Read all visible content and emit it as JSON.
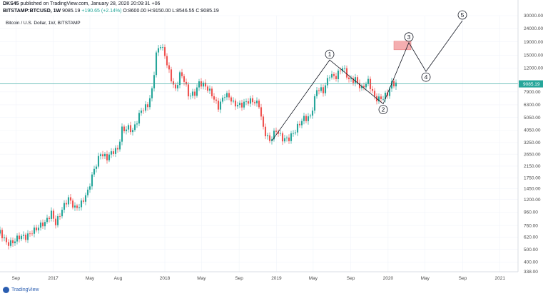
{
  "header": {
    "author": "DKS45",
    "published": "published on TradingView.com, January 28, 2020 20:09:31 +06",
    "symbol": "BITSTAMP:BTCUSD, 1W",
    "last": "9085.19",
    "change": "+190.65 (+2.14%)",
    "o": "O:8600.00",
    "h": "H:9150.00",
    "l": "L:8546.55",
    "c": "C:9085.19"
  },
  "footer": {
    "logo_text": "TradingView"
  },
  "colors": {
    "up": "#26a69a",
    "down": "#ef5350",
    "price_line": "#26a69a",
    "box": "#f4aeb0"
  },
  "chart_data": {
    "type": "candlestick",
    "title": "Bitcoin / U.S. Dollar, 1W, BITSTAMP",
    "scale": "log",
    "ylim": [
      338,
      30000
    ],
    "xlim": [
      "2016-07-11",
      "2021-03-01"
    ],
    "y_ticks": [
      "30000.00",
      "24000.00",
      "19000.00",
      "15000.00",
      "12000.00",
      "9085.19",
      "7900.00",
      "6300.00",
      "5050.00",
      "4050.00",
      "3250.00",
      "2650.00",
      "2150.00",
      "1750.00",
      "1450.00",
      "1200.00",
      "960.00",
      "760.00",
      "620.00",
      "500.00",
      "400.00",
      "338.00"
    ],
    "x_ticks": [
      {
        "label": "Sep",
        "date": "2016-09-01"
      },
      {
        "label": "2017",
        "date": "2017-01-01"
      },
      {
        "label": "May",
        "date": "2017-05-01"
      },
      {
        "label": "Aug",
        "date": "2017-08-01"
      },
      {
        "label": "2018",
        "date": "2018-01-01"
      },
      {
        "label": "May",
        "date": "2018-05-01"
      },
      {
        "label": "Sep",
        "date": "2018-09-01"
      },
      {
        "label": "2019",
        "date": "2019-01-01"
      },
      {
        "label": "May",
        "date": "2019-05-01"
      },
      {
        "label": "Sep",
        "date": "2019-09-01"
      },
      {
        "label": "2020",
        "date": "2020-01-01"
      },
      {
        "label": "May",
        "date": "2020-05-01"
      },
      {
        "label": "Sep",
        "date": "2020-09-01"
      },
      {
        "label": "2021",
        "date": "2021-01-01"
      }
    ],
    "price_line": 9085.19,
    "close_series": [
      [
        "2016-07-11",
        660
      ],
      [
        "2016-08-01",
        575
      ],
      [
        "2016-08-22",
        580
      ],
      [
        "2016-09-12",
        605
      ],
      [
        "2016-10-03",
        615
      ],
      [
        "2016-10-24",
        710
      ],
      [
        "2016-11-14",
        740
      ],
      [
        "2016-12-05",
        770
      ],
      [
        "2016-12-26",
        960
      ],
      [
        "2017-01-09",
        820
      ],
      [
        "2017-01-30",
        1000
      ],
      [
        "2017-02-20",
        1180
      ],
      [
        "2017-03-13",
        1050
      ],
      [
        "2017-04-03",
        1150
      ],
      [
        "2017-04-24",
        1340
      ],
      [
        "2017-05-15",
        2000
      ],
      [
        "2017-06-05",
        2800
      ],
      [
        "2017-06-26",
        2500
      ],
      [
        "2017-07-17",
        2700
      ],
      [
        "2017-07-31",
        2850
      ],
      [
        "2017-08-14",
        4200
      ],
      [
        "2017-09-04",
        4300
      ],
      [
        "2017-09-18",
        3900
      ],
      [
        "2017-10-02",
        4600
      ],
      [
        "2017-10-16",
        5700
      ],
      [
        "2017-11-06",
        6500
      ],
      [
        "2017-11-20",
        8200
      ],
      [
        "2017-12-04",
        15000
      ],
      [
        "2017-12-18",
        17500
      ],
      [
        "2018-01-01",
        15000
      ],
      [
        "2018-01-15",
        11500
      ],
      [
        "2018-02-05",
        8200
      ],
      [
        "2018-02-19",
        10500
      ],
      [
        "2018-03-05",
        9500
      ],
      [
        "2018-03-19",
        7500
      ],
      [
        "2018-04-09",
        8000
      ],
      [
        "2018-04-23",
        9300
      ],
      [
        "2018-05-14",
        8400
      ],
      [
        "2018-06-04",
        7600
      ],
      [
        "2018-06-25",
        6300
      ],
      [
        "2018-07-16",
        7400
      ],
      [
        "2018-07-30",
        7000
      ],
      [
        "2018-08-13",
        6400
      ],
      [
        "2018-09-03",
        6500
      ],
      [
        "2018-09-24",
        6600
      ],
      [
        "2018-10-15",
        6500
      ],
      [
        "2018-11-05",
        6400
      ],
      [
        "2018-11-19",
        4300
      ],
      [
        "2018-12-10",
        3300
      ],
      [
        "2018-12-31",
        3900
      ],
      [
        "2019-01-21",
        3550
      ],
      [
        "2019-02-11",
        3600
      ],
      [
        "2019-03-04",
        3900
      ],
      [
        "2019-04-01",
        5000
      ],
      [
        "2019-04-22",
        5300
      ],
      [
        "2019-05-13",
        8100
      ],
      [
        "2019-06-03",
        7800
      ],
      [
        "2019-06-24",
        11000
      ],
      [
        "2019-07-15",
        10500
      ],
      [
        "2019-08-05",
        11800
      ],
      [
        "2019-08-26",
        9700
      ],
      [
        "2019-09-16",
        10200
      ],
      [
        "2019-10-07",
        8300
      ],
      [
        "2019-10-28",
        9200
      ],
      [
        "2019-11-18",
        7300
      ],
      [
        "2019-12-09",
        7200
      ],
      [
        "2019-12-30",
        7400
      ],
      [
        "2020-01-13",
        8900
      ],
      [
        "2020-01-27",
        9085
      ]
    ],
    "projection": [
      [
        "2018-12-17",
        3350
      ],
      [
        "2019-06-24",
        13800
      ],
      [
        "2019-12-16",
        6400
      ],
      [
        "2020-03-09",
        18700
      ],
      [
        "2020-05-04",
        11300
      ],
      [
        "2020-08-31",
        27500
      ]
    ],
    "waves": [
      "1",
      "2",
      "3",
      "4",
      "5"
    ],
    "target_box": {
      "x0": "2020-01-20",
      "x1": "2020-03-16",
      "y0": 16500,
      "y1": 19200
    }
  }
}
